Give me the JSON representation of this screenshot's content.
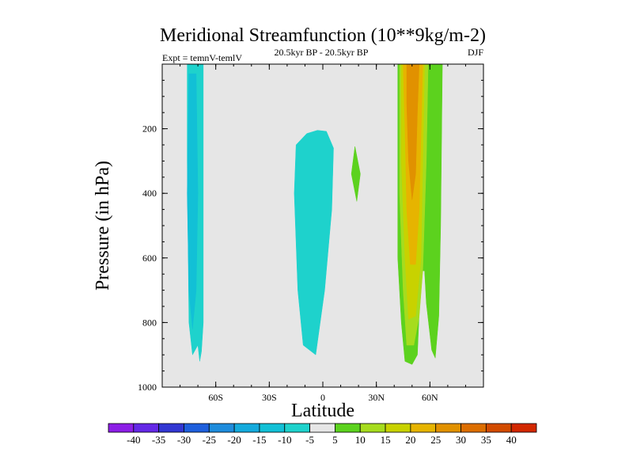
{
  "chart_data": {
    "type": "contour",
    "title": "Meridional Streamfunction (10**9kg/m-2)",
    "left_label": "Expt = temnV-temlV",
    "center_label": "20.5kyr BP - 20.5kyr BP",
    "right_label": "DJF",
    "xlabel": "Latitude",
    "ylabel": "Pressure (in hPa)",
    "xlim": [
      -90,
      90
    ],
    "ylim": [
      1000,
      0
    ],
    "x_ticks": [
      {
        "value": -60,
        "label": "60S"
      },
      {
        "value": -30,
        "label": "30S"
      },
      {
        "value": 0,
        "label": "0"
      },
      {
        "value": 30,
        "label": "30N"
      },
      {
        "value": 60,
        "label": "60N"
      }
    ],
    "y_ticks": [
      {
        "value": 200,
        "label": "200"
      },
      {
        "value": 400,
        "label": "400"
      },
      {
        "value": 600,
        "label": "600"
      },
      {
        "value": 800,
        "label": "800"
      },
      {
        "value": 1000,
        "label": "1000"
      }
    ],
    "background_color": "#e6e6e6",
    "contour_regions": [
      {
        "name": "sh-polar-cell",
        "level": -10,
        "color": "#1ed2cc",
        "points": [
          [
            -76,
            0
          ],
          [
            -67,
            0
          ],
          [
            -67,
            800
          ],
          [
            -68,
            890
          ],
          [
            -69,
            920
          ],
          [
            -70,
            870
          ],
          [
            -73,
            900
          ],
          [
            -75,
            800
          ],
          [
            -76,
            300
          ]
        ]
      },
      {
        "name": "sh-polar-cell-core",
        "level": -15,
        "color": "#12c0d6",
        "points": [
          [
            -75,
            30
          ],
          [
            -71,
            30
          ],
          [
            -70,
            400
          ],
          [
            -71,
            700
          ],
          [
            -73,
            820
          ],
          [
            -75,
            700
          ],
          [
            -76,
            400
          ]
        ]
      },
      {
        "name": "tropical-cell",
        "level": -10,
        "color": "#1ed2cc",
        "points": [
          [
            -15,
            250
          ],
          [
            -9,
            215
          ],
          [
            -3,
            205
          ],
          [
            2,
            208
          ],
          [
            6,
            260
          ],
          [
            5,
            450
          ],
          [
            1,
            700
          ],
          [
            -4,
            900
          ],
          [
            -11,
            870
          ],
          [
            -14,
            700
          ],
          [
            -16,
            400
          ]
        ]
      },
      {
        "name": "small-positive-cell",
        "level": 5,
        "color": "#5cd21e",
        "points": [
          [
            18,
            255
          ],
          [
            21,
            340
          ],
          [
            19,
            425
          ],
          [
            16,
            340
          ]
        ]
      },
      {
        "name": "nh-ferrel-cell",
        "level": 5,
        "color": "#5cd21e",
        "points": [
          [
            42,
            0
          ],
          [
            67,
            0
          ],
          [
            66,
            500
          ],
          [
            65,
            780
          ],
          [
            63,
            910
          ],
          [
            61,
            885
          ],
          [
            58,
            740
          ],
          [
            57,
            640
          ],
          [
            55,
            640
          ],
          [
            53,
            900
          ],
          [
            50,
            930
          ],
          [
            46,
            920
          ],
          [
            44,
            800
          ],
          [
            42,
            600
          ]
        ]
      },
      {
        "name": "nh-ferrel-cell-10",
        "level": 10,
        "color": "#a6dc1e",
        "points": [
          [
            43,
            0
          ],
          [
            59,
            0
          ],
          [
            58,
            300
          ],
          [
            56,
            640
          ],
          [
            54,
            780
          ],
          [
            51,
            870
          ],
          [
            47,
            870
          ],
          [
            45,
            700
          ],
          [
            43,
            400
          ]
        ]
      },
      {
        "name": "nh-ferrel-cell-15",
        "level": 15,
        "color": "#c8d200",
        "points": [
          [
            44,
            0
          ],
          [
            57,
            0
          ],
          [
            56,
            300
          ],
          [
            55,
            600
          ],
          [
            52,
            780
          ],
          [
            48,
            790
          ],
          [
            46,
            600
          ],
          [
            44,
            300
          ]
        ]
      },
      {
        "name": "nh-ferrel-cell-20",
        "level": 20,
        "color": "#e6b400",
        "points": [
          [
            45,
            0
          ],
          [
            56,
            0
          ],
          [
            55,
            220
          ],
          [
            54,
            450
          ],
          [
            52,
            620
          ],
          [
            49,
            620
          ],
          [
            47,
            450
          ],
          [
            46,
            200
          ]
        ]
      },
      {
        "name": "nh-ferrel-cell-25",
        "level": 25,
        "color": "#e19100",
        "points": [
          [
            47,
            0
          ],
          [
            54,
            0
          ],
          [
            53,
            150
          ],
          [
            52,
            340
          ],
          [
            50,
            420
          ],
          [
            48,
            300
          ],
          [
            47,
            120
          ]
        ]
      }
    ],
    "colorbar": {
      "labels": [
        "-40",
        "-35",
        "-30",
        "-25",
        "-20",
        "-15",
        "-10",
        "-5",
        "5",
        "10",
        "15",
        "20",
        "25",
        "30",
        "35",
        "40"
      ],
      "colors": [
        "#8c1ee6",
        "#6428e6",
        "#3237d2",
        "#1e5fdc",
        "#1e8cdc",
        "#14aadc",
        "#12c0d6",
        "#1ed2cc",
        "#e6e6e6",
        "#5cd21e",
        "#a6dc1e",
        "#c8d200",
        "#e6b400",
        "#e19100",
        "#dc6e00",
        "#d24b00",
        "#d22800"
      ]
    }
  }
}
